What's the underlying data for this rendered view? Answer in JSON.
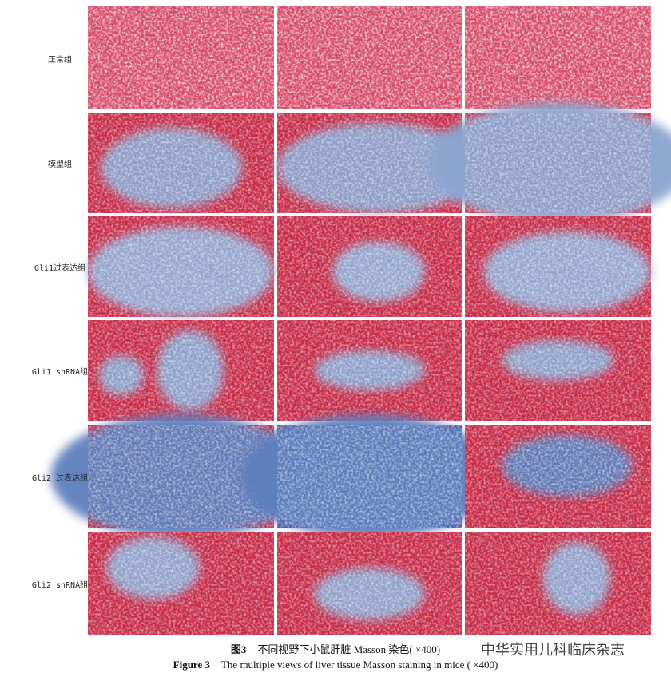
{
  "figure": {
    "row_labels": [
      "正常组",
      "模型组",
      "Gli1过表达组",
      "Gli1 shRNA组",
      "Gli2 过表达组",
      "Gli2 shRNA组"
    ],
    "caption_cn": {
      "label": "图3",
      "text": "不同视野下小鼠肝脏 Masson 染色( ×400)"
    },
    "caption_en": {
      "label": "Figure 3",
      "text": "The multiple views of liver tissue Masson staining in mice ( ×400)"
    },
    "watermark": "中华实用儿科临床杂志"
  }
}
